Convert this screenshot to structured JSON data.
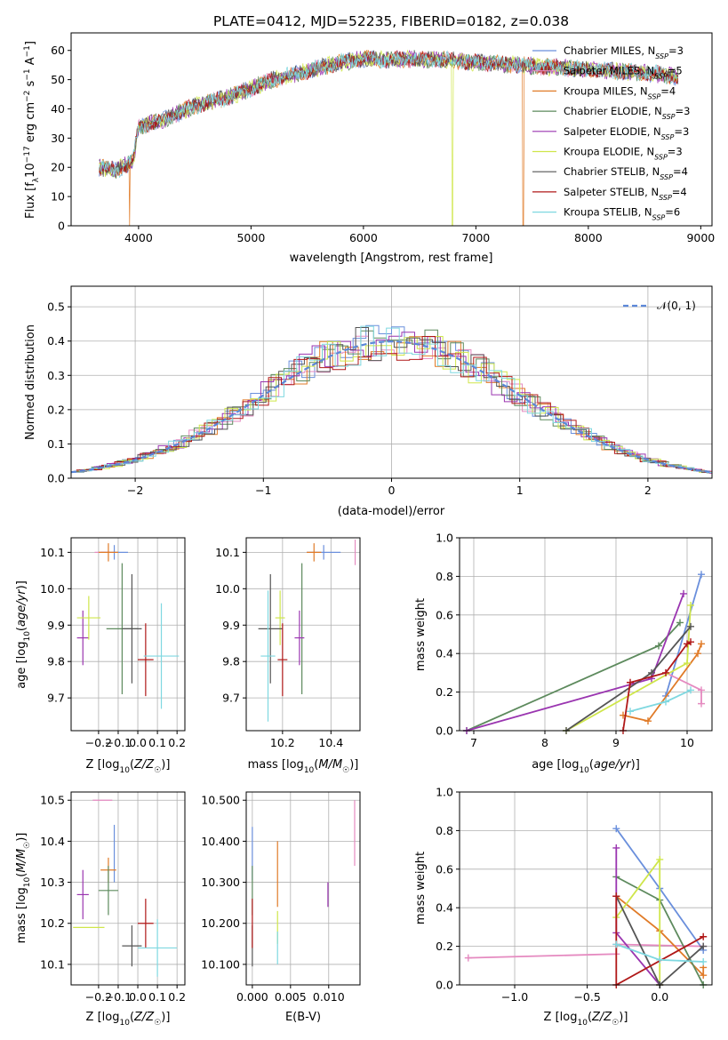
{
  "title": "PLATE=0412, MJD=52235, FIBERID=0182, z=0.038",
  "models": [
    {
      "name": "Chabrier MILES, N_SSP=3",
      "color": "#6a8fdc"
    },
    {
      "name": "Salpeter MILES, N_SSP=5",
      "color": "#e58ac0"
    },
    {
      "name": "Kroupa MILES, N_SSP=4",
      "color": "#e07b28"
    },
    {
      "name": "Chabrier ELODIE, N_SSP=3",
      "color": "#5d8a5d"
    },
    {
      "name": "Salpeter ELODIE, N_SSP=3",
      "color": "#9a35b0"
    },
    {
      "name": "Kroupa ELODIE, N_SSP=3",
      "color": "#cfe64a"
    },
    {
      "name": "Chabrier STELIB, N_SSP=4",
      "color": "#555555"
    },
    {
      "name": "Salpeter STELIB, N_SSP=4",
      "color": "#b01818"
    },
    {
      "name": "Kroupa STELIB, N_SSP=6",
      "color": "#7fd8e0"
    }
  ],
  "chart_data": [
    {
      "id": "spectrum",
      "type": "line",
      "xlabel": "wavelength [Angstrom, rest frame]",
      "ylabel": "Flux [f_λ10^-17 erg cm^-2 s^-1 A^-1]",
      "xlim": [
        3400,
        9100
      ],
      "ylim": [
        0,
        66
      ],
      "xticks": [
        4000,
        5000,
        6000,
        7000,
        8000,
        9000
      ],
      "yticks": [
        0,
        10,
        20,
        30,
        40,
        50,
        60
      ],
      "grid": false,
      "legend": "upper-right",
      "continuum": [
        [
          3650,
          20
        ],
        [
          3800,
          19
        ],
        [
          3950,
          22
        ],
        [
          4000,
          34
        ],
        [
          4200,
          36
        ],
        [
          4500,
          41
        ],
        [
          4800,
          44
        ],
        [
          5000,
          47
        ],
        [
          5200,
          50
        ],
        [
          5500,
          53
        ],
        [
          5800,
          56
        ],
        [
          6000,
          57
        ],
        [
          6300,
          57
        ],
        [
          6600,
          57
        ],
        [
          7000,
          56
        ],
        [
          7400,
          55
        ],
        [
          7800,
          54
        ],
        [
          8200,
          53
        ],
        [
          8600,
          52
        ],
        [
          8800,
          51
        ]
      ],
      "dips": [
        {
          "model": 2,
          "x": 3920,
          "y": 0
        },
        {
          "model": 5,
          "x": 6790,
          "y": 0
        },
        {
          "model": 2,
          "x": 7420,
          "y": 0
        }
      ]
    },
    {
      "id": "residuals",
      "type": "histogram",
      "xlabel": "(data-model)/error",
      "ylabel": "Normed distribution",
      "xlim": [
        -2.5,
        2.5
      ],
      "ylim": [
        0,
        0.56
      ],
      "xticks": [
        -2,
        -1,
        0,
        1,
        2
      ],
      "yticks": [
        0.0,
        0.1,
        0.2,
        0.3,
        0.4,
        0.5
      ],
      "grid": true,
      "legend": "upper-right",
      "reference": {
        "name": "𝒩(0, 1)",
        "mean": 0,
        "sigma": 1
      }
    },
    {
      "id": "age-vs-Z",
      "type": "errorbar",
      "xlabel": "Z [log10(Z/Z☉)]",
      "ylabel": "age [log10(age/yr)]",
      "xlim": [
        -0.34,
        0.24
      ],
      "ylim": [
        9.61,
        10.14
      ],
      "xticks": [
        -0.2,
        -0.1,
        0.0,
        0.1,
        0.2
      ],
      "yticks": [
        9.7,
        9.8,
        9.9,
        10.0,
        10.1
      ],
      "grid": true,
      "points": [
        {
          "model": 0,
          "x": -0.12,
          "xerr": 0.07,
          "y": 10.1,
          "yerr": 0.02
        },
        {
          "model": 1,
          "x": -0.18,
          "xerr": 0.04,
          "y": 10.1,
          "yerr": 0.0
        },
        {
          "model": 2,
          "x": -0.15,
          "xerr": 0.05,
          "y": 10.1,
          "yerr": 0.025
        },
        {
          "model": 3,
          "x": -0.08,
          "xerr": 0.08,
          "y": 9.89,
          "yerr": 0.18
        },
        {
          "model": 4,
          "x": -0.28,
          "xerr": 0.03,
          "y": 9.865,
          "yerr": 0.075
        },
        {
          "model": 5,
          "x": -0.25,
          "xerr": 0.06,
          "y": 9.92,
          "yerr": 0.06
        },
        {
          "model": 6,
          "x": -0.03,
          "xerr": 0.05,
          "y": 9.89,
          "yerr": 0.15
        },
        {
          "model": 7,
          "x": 0.04,
          "xerr": 0.04,
          "y": 9.805,
          "yerr": 0.1
        },
        {
          "model": 8,
          "x": 0.12,
          "xerr": 0.09,
          "y": 9.815,
          "yerr": 0.145
        }
      ]
    },
    {
      "id": "age-vs-mass",
      "type": "errorbar",
      "xlabel": "mass [log10(M/M☉)]",
      "ylabel": "",
      "xlim": [
        10.05,
        10.52
      ],
      "ylim": [
        9.61,
        10.14
      ],
      "xticks": [
        10.2,
        10.4
      ],
      "yticks": [
        9.7,
        9.8,
        9.9,
        10.0,
        10.1
      ],
      "grid": true,
      "points": [
        {
          "model": 0,
          "x": 10.37,
          "xerr": 0.07,
          "y": 10.1,
          "yerr": 0.02
        },
        {
          "model": 1,
          "x": 10.5,
          "xerr": 0.0,
          "y": 10.1,
          "yerr": 0.035
        },
        {
          "model": 2,
          "x": 10.33,
          "xerr": 0.03,
          "y": 10.1,
          "yerr": 0.025
        },
        {
          "model": 3,
          "x": 10.28,
          "xerr": 0.0,
          "y": 9.89,
          "yerr": 0.18
        },
        {
          "model": 4,
          "x": 10.27,
          "xerr": 0.02,
          "y": 9.865,
          "yerr": 0.075
        },
        {
          "model": 5,
          "x": 10.19,
          "xerr": 0.02,
          "y": 9.92,
          "yerr": 0.075
        },
        {
          "model": 6,
          "x": 10.15,
          "xerr": 0.05,
          "y": 9.89,
          "yerr": 0.15
        },
        {
          "model": 7,
          "x": 10.2,
          "xerr": 0.02,
          "y": 9.805,
          "yerr": 0.1
        },
        {
          "model": 8,
          "x": 10.14,
          "xerr": 0.03,
          "y": 9.815,
          "yerr": 0.18
        }
      ]
    },
    {
      "id": "mass-weight-vs-age",
      "type": "line",
      "xlabel": "age [log10(age/yr)]",
      "ylabel": "mass weight",
      "xlim": [
        6.8,
        10.35
      ],
      "ylim": [
        0,
        1
      ],
      "xticks": [
        7,
        8,
        9,
        10
      ],
      "yticks": [
        0.0,
        0.2,
        0.4,
        0.6,
        0.8,
        1.0
      ],
      "grid": true,
      "series": [
        {
          "model": 0,
          "x": [
            9.7,
            10.2
          ],
          "y": [
            0.18,
            0.81
          ]
        },
        {
          "model": 1,
          "x": [
            9.7,
            10.2,
            10.2
          ],
          "y": [
            0.3,
            0.21,
            0.14
          ]
        },
        {
          "model": 2,
          "x": [
            9.1,
            9.45,
            10.15,
            10.2
          ],
          "y": [
            0.08,
            0.05,
            0.4,
            0.45
          ]
        },
        {
          "model": 3,
          "x": [
            6.9,
            9.6,
            9.9
          ],
          "y": [
            0.0,
            0.44,
            0.56
          ]
        },
        {
          "model": 4,
          "x": [
            6.9,
            9.5,
            9.95
          ],
          "y": [
            0.0,
            0.27,
            0.71
          ]
        },
        {
          "model": 5,
          "x": [
            8.3,
            10.0,
            10.05
          ],
          "y": [
            0.0,
            0.35,
            0.65
          ]
        },
        {
          "model": 6,
          "x": [
            8.3,
            9.5,
            10.05
          ],
          "y": [
            0.0,
            0.3,
            0.54
          ]
        },
        {
          "model": 7,
          "x": [
            9.1,
            9.2,
            9.7,
            10.0,
            10.05
          ],
          "y": [
            0.0,
            0.25,
            0.3,
            0.45,
            0.46
          ]
        },
        {
          "model": 8,
          "x": [
            9.2,
            9.7,
            10.05
          ],
          "y": [
            0.1,
            0.15,
            0.21
          ]
        }
      ]
    },
    {
      "id": "mass-vs-Z",
      "type": "errorbar",
      "xlabel": "Z [log10(Z/Z☉)]",
      "ylabel": "mass [log10(M/M☉)]",
      "xlim": [
        -0.34,
        0.24
      ],
      "ylim": [
        10.05,
        10.52
      ],
      "xticks": [
        -0.2,
        -0.1,
        0.0,
        0.1,
        0.2
      ],
      "yticks": [
        10.1,
        10.2,
        10.3,
        10.4,
        10.5
      ],
      "grid": true,
      "points": [
        {
          "model": 0,
          "x": -0.12,
          "xerr": 0.0,
          "y": 10.37,
          "yerr": 0.07
        },
        {
          "model": 1,
          "x": -0.18,
          "xerr": 0.05,
          "y": 10.5,
          "yerr": 0.0
        },
        {
          "model": 2,
          "x": -0.15,
          "xerr": 0.04,
          "y": 10.33,
          "yerr": 0.03
        },
        {
          "model": 3,
          "x": -0.15,
          "xerr": 0.05,
          "y": 10.28,
          "yerr": 0.06
        },
        {
          "model": 4,
          "x": -0.28,
          "xerr": 0.03,
          "y": 10.27,
          "yerr": 0.06
        },
        {
          "model": 5,
          "x": -0.25,
          "xerr": 0.08,
          "y": 10.19,
          "yerr": 0.0
        },
        {
          "model": 6,
          "x": -0.03,
          "xerr": 0.05,
          "y": 10.145,
          "yerr": 0.05
        },
        {
          "model": 7,
          "x": 0.04,
          "xerr": 0.04,
          "y": 10.2,
          "yerr": 0.06
        },
        {
          "model": 8,
          "x": 0.1,
          "xerr": 0.1,
          "y": 10.14,
          "yerr": 0.07
        }
      ]
    },
    {
      "id": "mass-vs-ebv",
      "type": "errorbar",
      "xlabel": "E(B-V)",
      "ylabel": "",
      "xlim": [
        -0.0008,
        0.0141
      ],
      "ylim": [
        10.05,
        10.52
      ],
      "xticks": [
        0.0,
        0.005,
        0.01
      ],
      "yticks": [
        10.1,
        10.2,
        10.3,
        10.4,
        10.5
      ],
      "grid": true,
      "points": [
        {
          "model": 0,
          "x": 0.0,
          "xerr": 0,
          "y": 10.37,
          "yerr": 0.065
        },
        {
          "model": 1,
          "x": 0.0134,
          "xerr": 0,
          "y": 10.42,
          "yerr": 0.08
        },
        {
          "model": 2,
          "x": 0.0033,
          "xerr": 0,
          "y": 10.32,
          "yerr": 0.08
        },
        {
          "model": 3,
          "x": 0.0,
          "xerr": 0,
          "y": 10.28,
          "yerr": 0.06
        },
        {
          "model": 4,
          "x": 0.0099,
          "xerr": 0,
          "y": 10.27,
          "yerr": 0.03
        },
        {
          "model": 5,
          "x": 0.0033,
          "xerr": 0,
          "y": 10.19,
          "yerr": 0.04
        },
        {
          "model": 6,
          "x": 0.0,
          "xerr": 0,
          "y": 10.145,
          "yerr": 0.05
        },
        {
          "model": 7,
          "x": 0.0,
          "xerr": 0,
          "y": 10.2,
          "yerr": 0.06
        },
        {
          "model": 8,
          "x": 0.0033,
          "xerr": 0,
          "y": 10.14,
          "yerr": 0.04
        }
      ]
    },
    {
      "id": "mass-weight-vs-Z",
      "type": "line",
      "xlabel": "Z [log10(Z/Z☉)]",
      "ylabel": "mass weight",
      "xlim": [
        -1.38,
        0.36
      ],
      "ylim": [
        0,
        1
      ],
      "xticks": [
        -1.0,
        -0.5,
        0.0
      ],
      "yticks": [
        0.0,
        0.2,
        0.4,
        0.6,
        0.8,
        1.0
      ],
      "grid": true,
      "series": [
        {
          "model": 0,
          "x": [
            -0.3,
            0.0,
            0.3
          ],
          "y": [
            0.81,
            0.5,
            0.18
          ]
        },
        {
          "model": 1,
          "x": [
            -1.32,
            -0.3,
            -0.3,
            0.3
          ],
          "y": [
            0.14,
            0.16,
            0.21,
            0.2
          ]
        },
        {
          "model": 2,
          "x": [
            -0.3,
            0.0,
            0.3,
            0.3
          ],
          "y": [
            0.46,
            0.28,
            0.05,
            0.09
          ]
        },
        {
          "model": 3,
          "x": [
            -0.3,
            0.0,
            0.3
          ],
          "y": [
            0.56,
            0.44,
            0.0
          ]
        },
        {
          "model": 4,
          "x": [
            -0.3,
            -0.3,
            0.0
          ],
          "y": [
            0.71,
            0.27,
            0.0
          ]
        },
        {
          "model": 5,
          "x": [
            -0.3,
            0.0,
            0.0
          ],
          "y": [
            0.35,
            0.65,
            0.0
          ]
        },
        {
          "model": 6,
          "x": [
            -0.3,
            0.0,
            0.3
          ],
          "y": [
            0.46,
            0.0,
            0.2
          ]
        },
        {
          "model": 7,
          "x": [
            -0.3,
            -0.3,
            0.3
          ],
          "y": [
            0.46,
            0.0,
            0.25
          ]
        },
        {
          "model": 8,
          "x": [
            -0.3,
            0.0,
            0.3
          ],
          "y": [
            0.21,
            0.13,
            0.12
          ]
        }
      ]
    }
  ]
}
